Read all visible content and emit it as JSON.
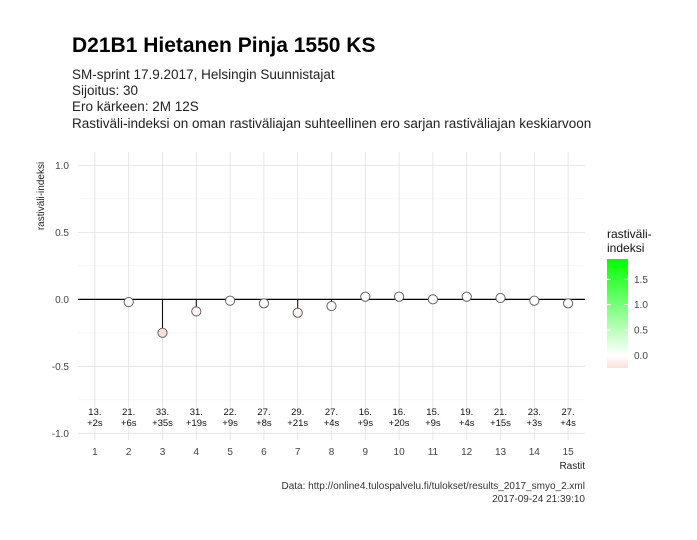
{
  "title": "D21B1 Hietanen Pinja 1550 KS",
  "subtitles": [
    "SM-sprint 17.9.2017, Helsingin Suunnistajat",
    "Sijoitus: 30",
    "Ero kärkeen: 2M 12S",
    "Rastiväli-indeksi on oman rastiväliajan suhteellinen ero sarjan rastiväliajan keskiarvoon"
  ],
  "caption_source": "Data: http://online4.tulospalvelu.fi/tulokset/results_2017_smyo_2.xml",
  "caption_date": "2017-09-24 21:39:10",
  "chart_data": {
    "type": "scatter",
    "style": "lollipop",
    "xlabel": "Rastit",
    "ylabel": "rastiväli-indeksi",
    "x": [
      1,
      2,
      3,
      4,
      5,
      6,
      7,
      8,
      9,
      10,
      11,
      12,
      13,
      14,
      15
    ],
    "y": [
      null,
      -0.02,
      -0.25,
      -0.09,
      -0.01,
      -0.03,
      -0.1,
      -0.05,
      0.02,
      0.02,
      0.0,
      0.02,
      0.01,
      -0.01,
      -0.03
    ],
    "xlim": [
      0.5,
      15.5
    ],
    "ylim": [
      -1.05,
      1.1
    ],
    "yticks": [
      "1.0",
      "0.5",
      "0.0",
      "-0.5",
      "-1.0"
    ],
    "ytick_values": [
      1.0,
      0.5,
      0.0,
      -0.5,
      -1.0
    ],
    "xticks": [
      "1",
      "2",
      "3",
      "4",
      "5",
      "6",
      "7",
      "8",
      "9",
      "10",
      "11",
      "12",
      "13",
      "14",
      "15"
    ],
    "annotations_rank": [
      "13.",
      "21.",
      "33.",
      "31.",
      "22.",
      "27.",
      "29.",
      "27.",
      "16.",
      "16.",
      "15.",
      "19.",
      "21.",
      "23.",
      "27."
    ],
    "annotations_diff": [
      "+2s",
      "+6s",
      "+35s",
      "+19s",
      "+9s",
      "+8s",
      "+21s",
      "+4s",
      "+9s",
      "+20s",
      "+9s",
      "+4s",
      "+15s",
      "+3s",
      "+4s"
    ],
    "grid": true,
    "legend": {
      "title_line1": "rastiväli-",
      "title_line2": "indeksi",
      "placement": "right",
      "ticks": [
        "1.5",
        "1.0",
        "0.5",
        "0.0"
      ],
      "tick_values": [
        1.5,
        1.0,
        0.5,
        0.0
      ],
      "range": [
        -0.25,
        1.9
      ],
      "color_low": "#fde0dc",
      "color_mid": "#ffffff",
      "color_high": "#00ff00"
    }
  }
}
